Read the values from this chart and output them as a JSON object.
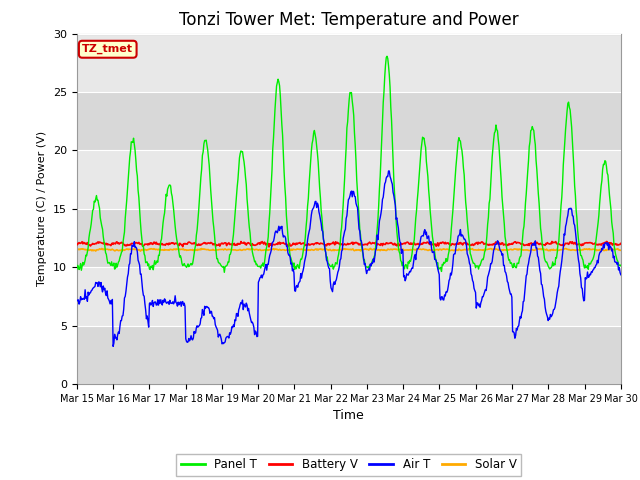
{
  "title": "Tonzi Tower Met: Temperature and Power",
  "xlabel": "Time",
  "ylabel": "Temperature (C) / Power (V)",
  "ylim": [
    0,
    30
  ],
  "x_tick_labels": [
    "Mar 15",
    "Mar 16",
    "Mar 17",
    "Mar 18",
    "Mar 19",
    "Mar 20",
    "Mar 21",
    "Mar 22",
    "Mar 23",
    "Mar 24",
    "Mar 25",
    "Mar 26",
    "Mar 27",
    "Mar 28",
    "Mar 29",
    "Mar 30"
  ],
  "bg_color": "#e8e8e8",
  "fig_bg": "#ffffff",
  "annotation_text": "TZ_tmet",
  "annotation_bg": "#ffffcc",
  "annotation_border": "#cc0000",
  "annotation_text_color": "#cc0000",
  "legend_labels": [
    "Panel T",
    "Battery V",
    "Air T",
    "Solar V"
  ],
  "legend_colors": [
    "#00ee00",
    "#ff0000",
    "#0000ff",
    "#ffaa00"
  ],
  "panel_t_color": "#00ee00",
  "battery_v_color": "#ff0000",
  "air_t_color": "#0000ff",
  "solar_v_color": "#ffaa00",
  "grid_color": "#ffffff",
  "title_fontsize": 12,
  "panel_peaks": [
    16,
    21,
    17,
    21,
    20,
    26,
    21.5,
    25,
    28,
    21,
    21,
    22,
    22,
    24,
    19
  ],
  "panel_troughs": [
    10,
    10,
    10,
    10,
    10,
    10,
    10,
    10,
    10,
    10,
    10,
    10,
    10,
    10,
    10
  ],
  "air_peaks": [
    8.5,
    12,
    7,
    6.5,
    7,
    13.5,
    15.5,
    16.5,
    18,
    13,
    13,
    12,
    12,
    15,
    12
  ],
  "air_troughs": [
    7,
    3.5,
    7,
    3.5,
    3.5,
    9,
    8,
    8,
    9.5,
    9,
    7,
    6.5,
    4,
    5.5,
    9
  ],
  "battery_v_mean": 12.0,
  "solar_v_mean": 11.5
}
